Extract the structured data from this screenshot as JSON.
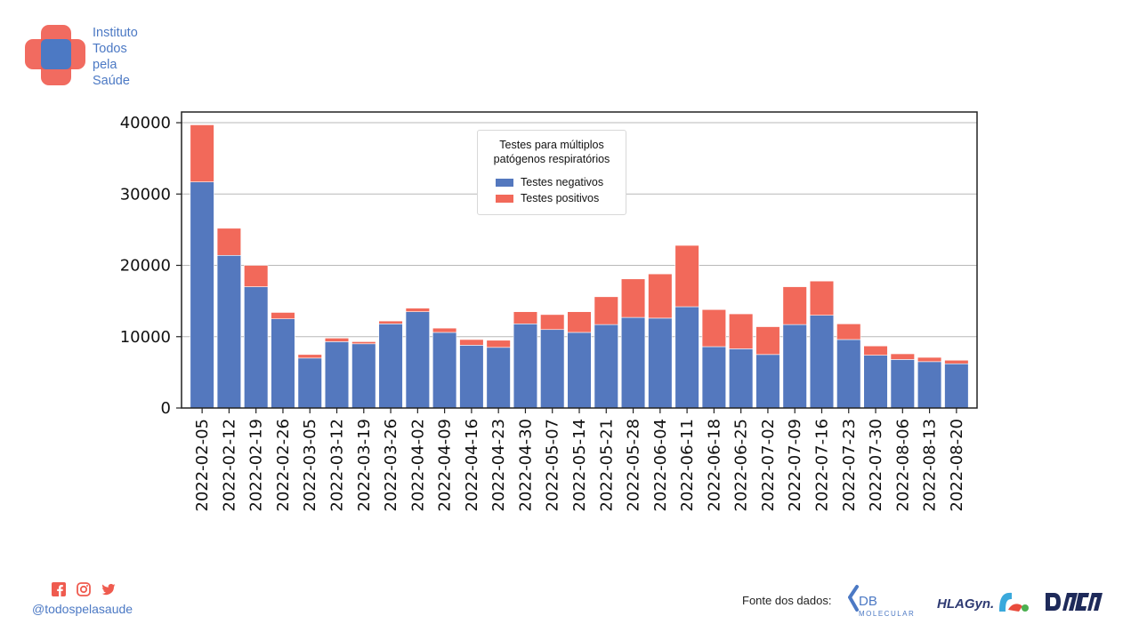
{
  "brand": {
    "name_lines": [
      "Instituto",
      "Todos",
      "pela",
      "Saúde"
    ],
    "colors": {
      "red": "#ef5b4f",
      "blue": "#4c79c4"
    }
  },
  "chart_data": {
    "type": "bar",
    "stacked": true,
    "legend_title_lines": [
      "Testes para múltiplos",
      "patógenos respiratórios"
    ],
    "legend_position": "upper-center",
    "categories": [
      "2022-02-05",
      "2022-02-12",
      "2022-02-19",
      "2022-02-26",
      "2022-03-05",
      "2022-03-12",
      "2022-03-19",
      "2022-03-26",
      "2022-04-02",
      "2022-04-09",
      "2022-04-16",
      "2022-04-23",
      "2022-04-30",
      "2022-05-07",
      "2022-05-14",
      "2022-05-21",
      "2022-05-28",
      "2022-06-04",
      "2022-06-11",
      "2022-06-18",
      "2022-06-25",
      "2022-07-02",
      "2022-07-09",
      "2022-07-16",
      "2022-07-23",
      "2022-07-30",
      "2022-08-06",
      "2022-08-13",
      "2022-08-20"
    ],
    "series": [
      {
        "name": "Testes negativos",
        "color": "#5478be",
        "values": [
          31700,
          21400,
          17000,
          12500,
          7000,
          9300,
          9000,
          11800,
          13500,
          10600,
          8800,
          8500,
          11800,
          11000,
          10600,
          11700,
          12700,
          12600,
          14200,
          8600,
          8300,
          7500,
          11700,
          13000,
          9600,
          7400,
          6800,
          6500,
          6200
        ]
      },
      {
        "name": "Testes positivos",
        "color": "#f2695a",
        "values": [
          8000,
          3800,
          3000,
          900,
          500,
          500,
          300,
          400,
          500,
          600,
          800,
          1000,
          1700,
          2100,
          2900,
          3900,
          5400,
          6200,
          8600,
          5200,
          4900,
          3900,
          5300,
          4800,
          2200,
          1300,
          800,
          600,
          500
        ]
      }
    ],
    "ylim": [
      0,
      41500
    ],
    "yticks": [
      0,
      10000,
      20000,
      30000,
      40000
    ],
    "grid": {
      "y": true,
      "x": false
    }
  },
  "footer": {
    "handle": "@todospelasaude",
    "social_icons": [
      "facebook-icon",
      "instagram-icon",
      "twitter-icon"
    ],
    "source_label": "Fonte dos dados:",
    "partners": [
      "DB MOLECULAR",
      "HLAGyn",
      "DASA"
    ]
  }
}
